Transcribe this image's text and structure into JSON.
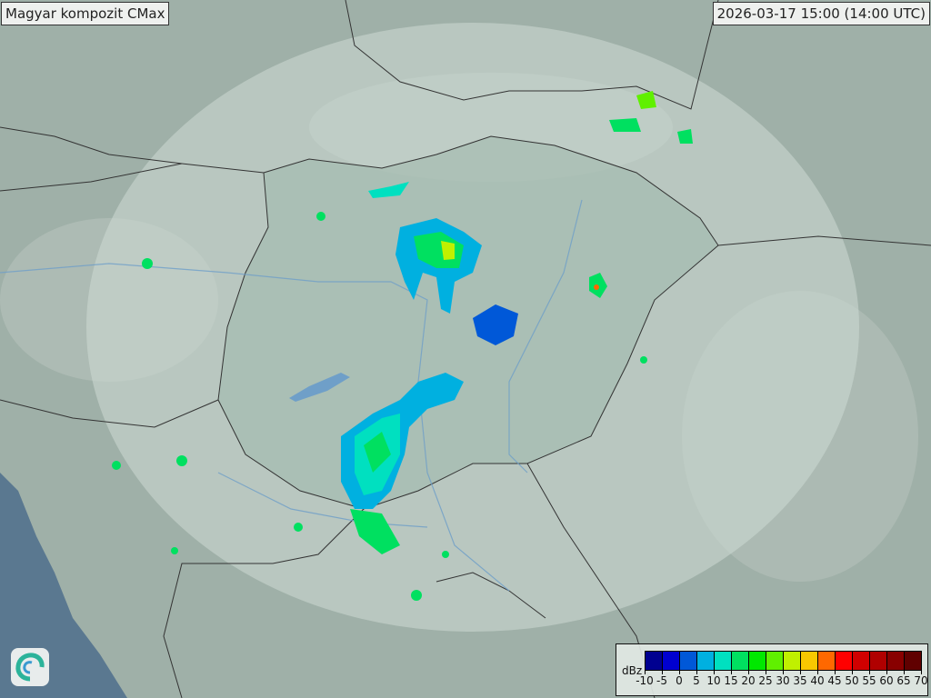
{
  "header": {
    "title": "Magyar kompozit  CMax",
    "timestamp": "2026-03-17 15:00 (14:00 UTC)"
  },
  "legend": {
    "unit": "dBz",
    "labels": [
      "-10",
      "-5",
      "0",
      "5",
      "10",
      "15",
      "20",
      "25",
      "30",
      "35",
      "40",
      "45",
      "50",
      "55",
      "60",
      "65",
      "70"
    ],
    "colors": [
      "#000090",
      "#0000d0",
      "#0058d8",
      "#00b0e0",
      "#00e0c0",
      "#00e060",
      "#00e800",
      "#60f000",
      "#c0f000",
      "#f8c800",
      "#ff6800",
      "#ff0000",
      "#d00000",
      "#b00000",
      "#880000",
      "#600000"
    ]
  },
  "map": {
    "land_color": "#a4b4ac",
    "coverage_color": "#c8d6d0",
    "sea_color": "#5a7890",
    "border_color": "#333333",
    "river_color": "#6f9fc8"
  },
  "logo": {
    "icon": "swirl-logo-icon"
  }
}
